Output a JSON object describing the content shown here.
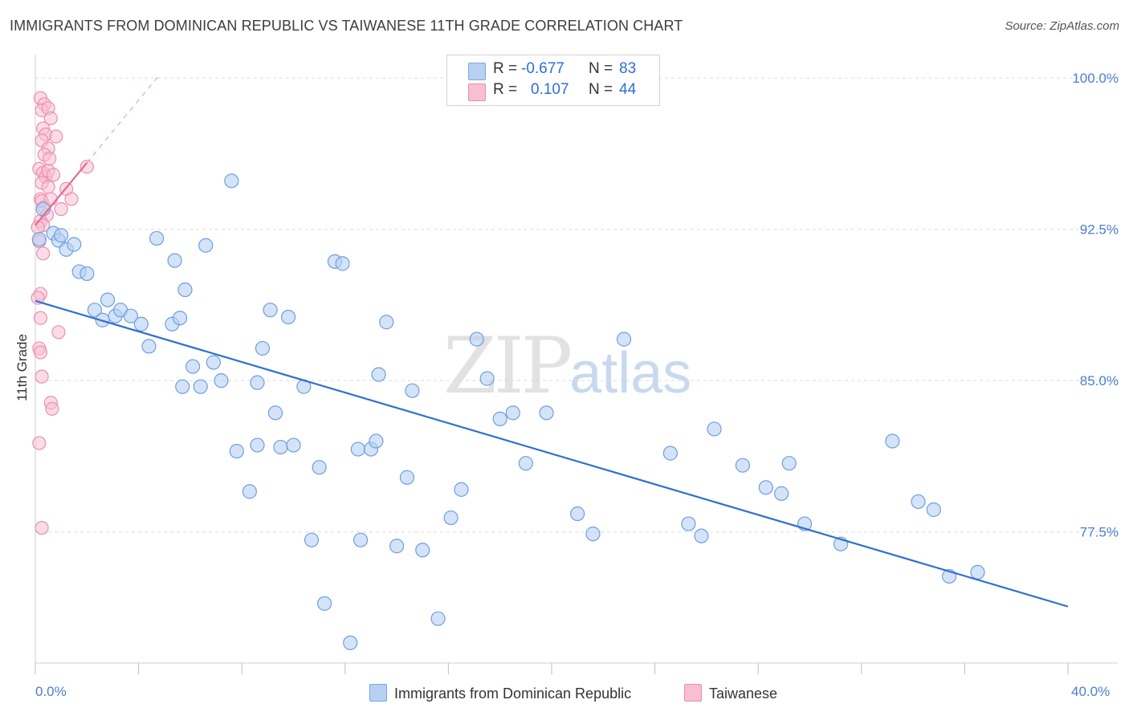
{
  "title": "IMMIGRANTS FROM DOMINICAN REPUBLIC VS TAIWANESE 11TH GRADE CORRELATION CHART",
  "source": "Source: ZipAtlas.com",
  "watermark": {
    "zip": "ZIP",
    "atlas": "atlas"
  },
  "legend": {
    "rows": [
      {
        "r_label": "R =",
        "r_value": "-0.677",
        "n_label": "N =",
        "n_value": "83"
      },
      {
        "r_label": "R =",
        "r_value": "0.107",
        "n_label": "N =",
        "n_value": "44"
      }
    ]
  },
  "colors": {
    "blue": "#3b7dd8",
    "blue_fill": "#b8d0f2",
    "pink": "#e8729a",
    "pink_fill": "#f7bfd1",
    "tick": "#4a7fd0"
  },
  "chart_data": {
    "type": "scatter",
    "title": "IMMIGRANTS FROM DOMINICAN REPUBLIC VS TAIWANESE 11TH GRADE CORRELATION CHART",
    "ylabel": "11th Grade",
    "xlabel": "",
    "xlim": [
      0,
      40
    ],
    "ylim": [
      71.0,
      101.0
    ],
    "x_tick_labels": [
      "0.0%",
      "40.0%"
    ],
    "y_ticks": [
      100.0,
      92.5,
      85.0,
      77.5
    ],
    "y_tick_labels": [
      "100.0%",
      "92.5%",
      "85.0%",
      "77.5%"
    ],
    "grid": true,
    "series": [
      {
        "name": "Immigrants from Dominican Republic",
        "color": "#3b7dd8",
        "trend": {
          "x": [
            0.0,
            40.0
          ],
          "y": [
            88.95,
            73.8
          ]
        },
        "points": [
          [
            0.3,
            93.5
          ],
          [
            0.7,
            92.3
          ],
          [
            0.9,
            91.95
          ],
          [
            1.2,
            91.5
          ],
          [
            1.5,
            91.75
          ],
          [
            1.7,
            90.4
          ],
          [
            2.0,
            90.3
          ],
          [
            2.3,
            88.5
          ],
          [
            2.6,
            88.0
          ],
          [
            2.8,
            89.0
          ],
          [
            3.1,
            88.2
          ],
          [
            3.3,
            88.5
          ],
          [
            3.7,
            88.2
          ],
          [
            4.1,
            87.8
          ],
          [
            4.4,
            86.7
          ],
          [
            4.7,
            92.05
          ],
          [
            5.4,
            90.95
          ],
          [
            5.8,
            89.5
          ],
          [
            5.3,
            87.8
          ],
          [
            5.6,
            88.1
          ],
          [
            6.1,
            85.7
          ],
          [
            5.7,
            84.7
          ],
          [
            6.4,
            84.7
          ],
          [
            6.6,
            91.7
          ],
          [
            6.9,
            85.9
          ],
          [
            7.2,
            85.0
          ],
          [
            7.6,
            94.9
          ],
          [
            7.8,
            81.5
          ],
          [
            8.3,
            79.5
          ],
          [
            8.6,
            81.8
          ],
          [
            8.6,
            84.9
          ],
          [
            8.8,
            86.6
          ],
          [
            9.1,
            88.5
          ],
          [
            9.3,
            83.4
          ],
          [
            9.5,
            81.7
          ],
          [
            10.0,
            81.8
          ],
          [
            9.8,
            88.15
          ],
          [
            10.4,
            84.7
          ],
          [
            10.7,
            77.1
          ],
          [
            11.0,
            80.7
          ],
          [
            11.2,
            73.95
          ],
          [
            11.6,
            90.9
          ],
          [
            11.9,
            90.8
          ],
          [
            12.2,
            72.0
          ],
          [
            12.5,
            81.6
          ],
          [
            12.6,
            77.1
          ],
          [
            13.0,
            81.6
          ],
          [
            13.2,
            82.0
          ],
          [
            13.3,
            85.3
          ],
          [
            13.6,
            87.9
          ],
          [
            14.0,
            76.8
          ],
          [
            14.4,
            80.2
          ],
          [
            14.6,
            84.5
          ],
          [
            15.0,
            76.6
          ],
          [
            15.6,
            73.2
          ],
          [
            16.1,
            78.2
          ],
          [
            16.5,
            79.6
          ],
          [
            17.1,
            87.05
          ],
          [
            17.5,
            85.1
          ],
          [
            18.0,
            83.1
          ],
          [
            18.5,
            83.4
          ],
          [
            19.0,
            80.9
          ],
          [
            19.8,
            83.4
          ],
          [
            21.0,
            78.4
          ],
          [
            21.6,
            77.4
          ],
          [
            22.8,
            87.05
          ],
          [
            24.6,
            81.4
          ],
          [
            25.3,
            77.9
          ],
          [
            25.8,
            77.3
          ],
          [
            26.3,
            82.6
          ],
          [
            27.4,
            80.8
          ],
          [
            28.3,
            79.7
          ],
          [
            28.9,
            79.4
          ],
          [
            29.2,
            80.9
          ],
          [
            29.8,
            77.9
          ],
          [
            31.2,
            76.9
          ],
          [
            33.2,
            82.0
          ],
          [
            34.2,
            79.0
          ],
          [
            34.8,
            78.6
          ],
          [
            35.4,
            75.3
          ],
          [
            36.5,
            75.5
          ],
          [
            0.15,
            92.0
          ],
          [
            1.0,
            92.2
          ]
        ]
      },
      {
        "name": "Taiwanese",
        "color": "#e8729a",
        "trend": {
          "x": [
            0.0,
            2.0
          ],
          "y": [
            92.7,
            95.8
          ]
        },
        "points": [
          [
            0.2,
            99.0
          ],
          [
            0.35,
            98.7
          ],
          [
            0.25,
            98.4
          ],
          [
            0.5,
            98.5
          ],
          [
            0.6,
            98.0
          ],
          [
            0.3,
            97.5
          ],
          [
            0.4,
            97.2
          ],
          [
            0.25,
            96.9
          ],
          [
            0.5,
            96.5
          ],
          [
            0.8,
            97.1
          ],
          [
            0.15,
            95.5
          ],
          [
            0.3,
            95.3
          ],
          [
            0.4,
            95.1
          ],
          [
            0.25,
            94.8
          ],
          [
            0.5,
            95.4
          ],
          [
            1.2,
            94.5
          ],
          [
            1.4,
            94.0
          ],
          [
            1.0,
            93.5
          ],
          [
            0.2,
            94.0
          ],
          [
            0.35,
            93.6
          ],
          [
            0.45,
            93.2
          ],
          [
            0.2,
            92.9
          ],
          [
            0.3,
            92.7
          ],
          [
            0.1,
            92.6
          ],
          [
            0.25,
            93.9
          ],
          [
            0.6,
            94.0
          ],
          [
            0.15,
            91.9
          ],
          [
            0.3,
            91.3
          ],
          [
            0.2,
            89.3
          ],
          [
            0.1,
            89.1
          ],
          [
            0.2,
            88.1
          ],
          [
            0.9,
            87.4
          ],
          [
            0.15,
            86.6
          ],
          [
            0.2,
            86.4
          ],
          [
            0.25,
            85.2
          ],
          [
            0.6,
            83.9
          ],
          [
            0.65,
            83.6
          ],
          [
            0.15,
            81.9
          ],
          [
            0.25,
            77.7
          ],
          [
            2.0,
            95.6
          ],
          [
            0.7,
            95.2
          ],
          [
            0.5,
            94.6
          ],
          [
            0.35,
            96.2
          ],
          [
            0.55,
            96.0
          ]
        ]
      }
    ]
  },
  "bottom_legend": [
    "Immigrants from Dominican Republic",
    "Taiwanese"
  ]
}
